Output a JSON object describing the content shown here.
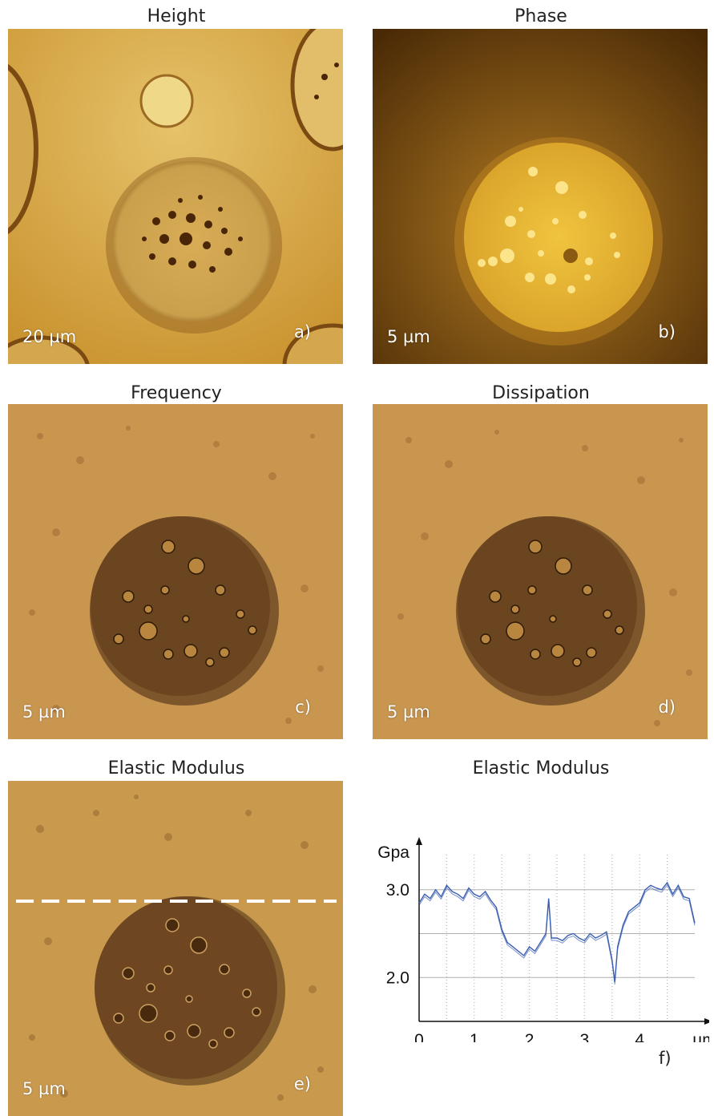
{
  "panels": [
    {
      "title": "Height",
      "scale": "20 µm",
      "letter": "a)"
    },
    {
      "title": "Phase",
      "scale": "5 µm",
      "letter": "b)"
    },
    {
      "title": "Frequency",
      "scale": "5 µm",
      "letter": "c)"
    },
    {
      "title": "Dissipation",
      "scale": "5 µm",
      "letter": "d)"
    },
    {
      "title": "Elastic Modulus",
      "scale": "5 µm",
      "letter": "e)"
    }
  ],
  "chart_data": {
    "type": "line",
    "title": "Elastic Modulus",
    "panel_label": "f)",
    "ylabel": "Gpa",
    "xlabel": "µm",
    "xlim": [
      0,
      5
    ],
    "ylim": [
      1.5,
      3.4
    ],
    "x_ticks": [
      "0",
      "1",
      "2",
      "3",
      "4"
    ],
    "y_ticks": [
      "3.0",
      "2.0"
    ],
    "grid": true,
    "series": [
      {
        "color": "#3b5fb0",
        "x": [
          0,
          0.1,
          0.2,
          0.3,
          0.4,
          0.5,
          0.6,
          0.7,
          0.8,
          0.9,
          1.0,
          1.1,
          1.2,
          1.3,
          1.4,
          1.5,
          1.6,
          1.7,
          1.8,
          1.9,
          2.0,
          2.1,
          2.2,
          2.3,
          2.35,
          2.4,
          2.5,
          2.6,
          2.7,
          2.8,
          2.9,
          3.0,
          3.1,
          3.2,
          3.3,
          3.4,
          3.5,
          3.55,
          3.6,
          3.7,
          3.8,
          3.9,
          4.0,
          4.1,
          4.2,
          4.3,
          4.4,
          4.5,
          4.6,
          4.7,
          4.8,
          4.9,
          5.0
        ],
        "y": [
          2.85,
          2.95,
          2.9,
          3.0,
          2.92,
          3.05,
          2.98,
          2.95,
          2.9,
          3.02,
          2.95,
          2.92,
          2.98,
          2.88,
          2.8,
          2.55,
          2.4,
          2.35,
          2.3,
          2.25,
          2.35,
          2.3,
          2.4,
          2.5,
          2.9,
          2.45,
          2.45,
          2.42,
          2.48,
          2.5,
          2.45,
          2.42,
          2.5,
          2.45,
          2.48,
          2.52,
          2.2,
          1.95,
          2.35,
          2.6,
          2.75,
          2.8,
          2.85,
          3.0,
          3.05,
          3.02,
          3.0,
          3.08,
          2.95,
          3.05,
          2.92,
          2.9,
          2.62
        ]
      }
    ]
  }
}
